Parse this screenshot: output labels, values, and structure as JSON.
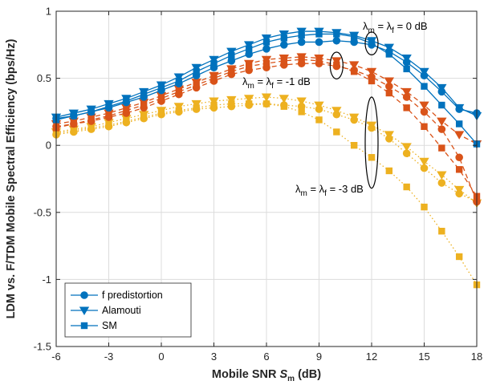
{
  "chart_data": {
    "type": "line",
    "xlabel": "Mobile SNR S_m (dB)",
    "xlabel_parts": {
      "text": "Mobile SNR ",
      "var": "S",
      "sub": "m",
      "unit": " (dB)"
    },
    "ylabel": "LDM vs. F/TDM Mobile Spectral Efficiency (bps/Hz)",
    "xlim": [
      -6,
      18
    ],
    "ylim": [
      -1.5,
      1
    ],
    "xticks": [
      -6,
      -3,
      0,
      3,
      6,
      9,
      12,
      15,
      18
    ],
    "yticks": [
      -1.5,
      -1,
      -0.5,
      0,
      0.5,
      1
    ],
    "grid": true,
    "legend_location": "bottom-left",
    "legend": [
      {
        "label": "f predistortion",
        "marker": "circle"
      },
      {
        "label": "Alamouti",
        "marker": "triangle-down"
      },
      {
        "label": "SM",
        "marker": "square"
      }
    ],
    "colors": {
      "0": "#0072BD",
      "-1": "#D95319",
      "-3": "#EDB120"
    },
    "annotations": [
      {
        "prefix": "λ",
        "sub1": "m",
        "mid": " = λ",
        "sub2": "f",
        "value": " = 0 dB"
      },
      {
        "prefix": "λ",
        "sub1": "m",
        "mid": " = λ",
        "sub2": "f",
        "value": " = -1 dB"
      },
      {
        "prefix": "λ",
        "sub1": "m",
        "mid": " = λ",
        "sub2": "f",
        "value": " = -3 dB"
      }
    ],
    "x": [
      -6,
      -5,
      -4,
      -3,
      -2,
      -1,
      0,
      1,
      2,
      3,
      4,
      5,
      6,
      7,
      8,
      9,
      10,
      11,
      12,
      13,
      14,
      15,
      16,
      17,
      18
    ],
    "series": [
      {
        "group": "0",
        "method": "f predistortion",
        "marker": "circle",
        "dash": "solid",
        "values": [
          0.2,
          0.22,
          0.25,
          0.28,
          0.32,
          0.36,
          0.41,
          0.46,
          0.52,
          0.58,
          0.63,
          0.68,
          0.72,
          0.75,
          0.77,
          0.77,
          0.78,
          0.77,
          0.75,
          0.7,
          0.62,
          0.52,
          0.4,
          0.27,
          0.24
        ]
      },
      {
        "group": "0",
        "method": "Alamouti",
        "marker": "triangle-down",
        "dash": "solid",
        "values": [
          0.21,
          0.24,
          0.27,
          0.31,
          0.35,
          0.4,
          0.45,
          0.51,
          0.58,
          0.64,
          0.7,
          0.75,
          0.8,
          0.83,
          0.85,
          0.85,
          0.84,
          0.82,
          0.78,
          0.73,
          0.65,
          0.55,
          0.43,
          0.28,
          0.22
        ]
      },
      {
        "group": "0",
        "method": "SM",
        "marker": "square",
        "dash": "solid",
        "values": [
          0.19,
          0.22,
          0.25,
          0.29,
          0.33,
          0.38,
          0.43,
          0.48,
          0.55,
          0.61,
          0.67,
          0.72,
          0.77,
          0.8,
          0.82,
          0.83,
          0.83,
          0.81,
          0.76,
          0.68,
          0.57,
          0.44,
          0.3,
          0.16,
          0.01
        ]
      },
      {
        "group": "-1",
        "method": "f predistortion",
        "marker": "circle",
        "dash": "dashed",
        "values": [
          0.14,
          0.16,
          0.18,
          0.21,
          0.24,
          0.28,
          0.33,
          0.38,
          0.43,
          0.48,
          0.53,
          0.56,
          0.58,
          0.6,
          0.61,
          0.61,
          0.59,
          0.56,
          0.51,
          0.44,
          0.36,
          0.25,
          0.12,
          -0.09,
          -0.42
        ]
      },
      {
        "group": "-1",
        "method": "Alamouti",
        "marker": "triangle-down",
        "dash": "dashed",
        "values": [
          0.16,
          0.18,
          0.21,
          0.24,
          0.28,
          0.32,
          0.37,
          0.42,
          0.47,
          0.52,
          0.57,
          0.61,
          0.64,
          0.65,
          0.66,
          0.65,
          0.63,
          0.6,
          0.55,
          0.48,
          0.4,
          0.3,
          0.18,
          0.08,
          0.01
        ]
      },
      {
        "group": "-1",
        "method": "SM",
        "marker": "square",
        "dash": "dashed",
        "values": [
          0.13,
          0.16,
          0.19,
          0.22,
          0.26,
          0.3,
          0.35,
          0.4,
          0.45,
          0.5,
          0.55,
          0.59,
          0.61,
          0.63,
          0.64,
          0.63,
          0.6,
          0.55,
          0.48,
          0.39,
          0.28,
          0.14,
          -0.02,
          -0.18,
          -0.38
        ]
      },
      {
        "group": "-3",
        "method": "f predistortion",
        "marker": "circle",
        "dash": "dotted",
        "values": [
          0.08,
          0.1,
          0.12,
          0.14,
          0.17,
          0.2,
          0.23,
          0.25,
          0.27,
          0.28,
          0.29,
          0.3,
          0.31,
          0.3,
          0.29,
          0.27,
          0.23,
          0.19,
          0.13,
          0.05,
          -0.06,
          -0.17,
          -0.28,
          -0.36,
          -0.42
        ]
      },
      {
        "group": "-3",
        "method": "Alamouti",
        "marker": "triangle-down",
        "dash": "dotted",
        "values": [
          0.1,
          0.12,
          0.14,
          0.17,
          0.2,
          0.23,
          0.26,
          0.29,
          0.31,
          0.33,
          0.34,
          0.35,
          0.36,
          0.35,
          0.33,
          0.3,
          0.26,
          0.21,
          0.15,
          0.08,
          -0.01,
          -0.12,
          -0.22,
          -0.33,
          -0.43
        ]
      },
      {
        "group": "-3",
        "method": "SM",
        "marker": "square",
        "dash": "dotted",
        "values": [
          0.09,
          0.11,
          0.13,
          0.15,
          0.18,
          0.21,
          0.24,
          0.26,
          0.28,
          0.3,
          0.31,
          0.31,
          0.31,
          0.29,
          0.25,
          0.19,
          0.1,
          0.0,
          -0.09,
          -0.19,
          -0.31,
          -0.46,
          -0.64,
          -0.83,
          -1.04
        ]
      }
    ]
  }
}
